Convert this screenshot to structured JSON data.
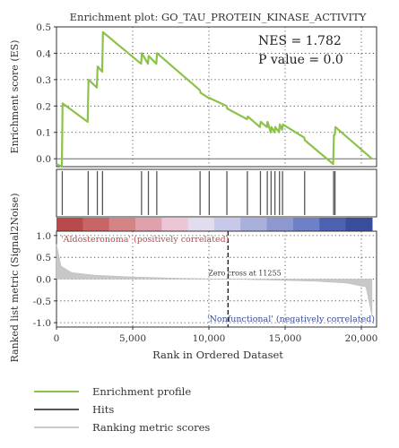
{
  "chart_data": {
    "type": "line",
    "title": "Enrichment plot: GO_TAU_PROTEIN_KINASE_ACTIVITY",
    "nes_text": "NES = 1.782",
    "pvalue_text": "P value = 0.0",
    "xlabel": "Rank in Ordered Dataset",
    "xlim": [
      0,
      21000
    ],
    "x_ticks": [
      0,
      5000,
      10000,
      15000,
      20000
    ],
    "x_tick_labels": [
      "0",
      "5,000",
      "10,000",
      "15,000",
      "20,000"
    ],
    "top_panel": {
      "ylabel": "Enrichment score (ES)",
      "ylim": [
        -0.03,
        0.5
      ],
      "y_ticks": [
        0.0,
        0.1,
        0.2,
        0.3,
        0.4,
        0.5
      ],
      "y_tick_labels": [
        "0.0",
        "0.1",
        "0.2",
        "0.3",
        "0.4",
        "0.5"
      ],
      "grid": true,
      "series": [
        {
          "name": "Enrichment profile",
          "color": "#8bc34a",
          "x": [
            0,
            350,
            400,
            2050,
            2100,
            2650,
            2700,
            3000,
            3050,
            5550,
            5600,
            6000,
            6050,
            6550,
            6600,
            9400,
            9450,
            10000,
            10050,
            11150,
            11200,
            12500,
            12550,
            13350,
            13400,
            13800,
            13850,
            14050,
            14100,
            14300,
            14350,
            14600,
            14650,
            14800,
            14850,
            16250,
            16300,
            18150,
            18200,
            18250,
            18300,
            20700
          ],
          "y": [
            -0.02,
            -0.03,
            0.21,
            0.14,
            0.3,
            0.27,
            0.35,
            0.33,
            0.48,
            0.36,
            0.4,
            0.36,
            0.39,
            0.36,
            0.4,
            0.26,
            0.25,
            0.23,
            0.23,
            0.2,
            0.19,
            0.15,
            0.16,
            0.12,
            0.14,
            0.12,
            0.14,
            0.1,
            0.12,
            0.1,
            0.12,
            0.1,
            0.13,
            0.11,
            0.13,
            0.08,
            0.07,
            -0.02,
            0.09,
            0.09,
            0.12,
            0.0
          ]
        }
      ]
    },
    "hits": {
      "name": "Hits",
      "color": "#555555",
      "positions": [
        380,
        2080,
        2680,
        3020,
        5580,
        6030,
        6580,
        9420,
        10020,
        11180,
        12520,
        13380,
        13830,
        14080,
        14330,
        14630,
        14830,
        16280,
        18180,
        18270
      ]
    },
    "heatbar": {
      "colors": [
        "#b94a4a",
        "#c86464",
        "#d48484",
        "#e0a0ac",
        "#ecc6d4",
        "#e2dcee",
        "#c8c8e8",
        "#aab0dc",
        "#8e98d0",
        "#6e80c6",
        "#4e60b0",
        "#3a4c9c"
      ]
    },
    "bottom_panel": {
      "ylabel": "Ranked list metric (Signal2Noise)",
      "ylim": [
        -1.1,
        1.1
      ],
      "y_ticks": [
        1.0,
        0.5,
        0.0,
        -0.5,
        -1.0
      ],
      "y_tick_labels": [
        "1.0",
        "0.5",
        "0.0",
        "-0.5",
        "-1.0"
      ],
      "series_name": "Ranking metric scores",
      "color": "#c8c8c8",
      "metric_x": [
        0,
        300,
        1000,
        2500,
        5000,
        8000,
        11255,
        14000,
        17000,
        19000,
        20300,
        20700
      ],
      "metric_y": [
        0.8,
        0.3,
        0.15,
        0.09,
        0.05,
        0.02,
        0.0,
        -0.02,
        -0.05,
        -0.09,
        -0.18,
        -0.85
      ],
      "zero_cross_x": 11255,
      "zero_cross_label": "Zero cross at 11255",
      "positive_label": "'Aldosteronoma' (positively correlated)",
      "negative_label": "'Nonfunctional' (negatively correlated)"
    },
    "legend": [
      {
        "label": "Enrichment profile",
        "color": "#8bc34a"
      },
      {
        "label": "Hits",
        "color": "#555555"
      },
      {
        "label": "Ranking metric scores",
        "color": "#c8c8c8"
      }
    ]
  }
}
